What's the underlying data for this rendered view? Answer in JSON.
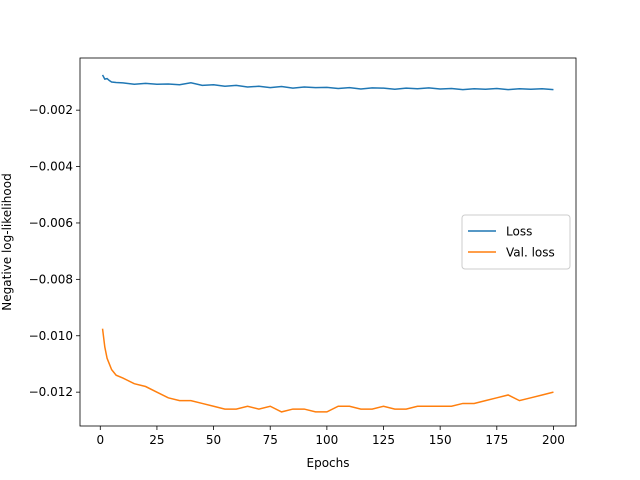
{
  "chart_data": {
    "type": "line",
    "xlabel": "Epochs",
    "ylabel": "Negative log-likelihood",
    "x": [
      1,
      2,
      3,
      4,
      5,
      7,
      10,
      15,
      20,
      25,
      30,
      35,
      40,
      45,
      50,
      55,
      60,
      65,
      70,
      75,
      80,
      85,
      90,
      95,
      100,
      105,
      110,
      115,
      120,
      125,
      130,
      135,
      140,
      145,
      150,
      155,
      160,
      165,
      170,
      175,
      180,
      185,
      190,
      195,
      200
    ],
    "series": [
      {
        "name": "Loss",
        "color": "#1f77b4",
        "values": [
          -0.00075,
          -0.0009,
          -0.00088,
          -0.00095,
          -0.001,
          -0.00102,
          -0.00103,
          -0.00108,
          -0.00105,
          -0.00108,
          -0.00107,
          -0.0011,
          -0.00103,
          -0.00112,
          -0.0011,
          -0.00115,
          -0.00112,
          -0.00118,
          -0.00115,
          -0.0012,
          -0.00116,
          -0.00122,
          -0.00118,
          -0.0012,
          -0.00119,
          -0.00123,
          -0.0012,
          -0.00125,
          -0.00121,
          -0.00122,
          -0.00126,
          -0.00122,
          -0.00124,
          -0.00121,
          -0.00125,
          -0.00123,
          -0.00127,
          -0.00124,
          -0.00126,
          -0.00123,
          -0.00127,
          -0.00124,
          -0.00126,
          -0.00124,
          -0.00127
        ]
      },
      {
        "name": "Val. loss",
        "color": "#ff7f0e",
        "values": [
          -0.00975,
          -0.0104,
          -0.0108,
          -0.011,
          -0.0112,
          -0.0114,
          -0.0115,
          -0.0117,
          -0.0118,
          -0.012,
          -0.0122,
          -0.0123,
          -0.0123,
          -0.0124,
          -0.0125,
          -0.0126,
          -0.0126,
          -0.0125,
          -0.0126,
          -0.0125,
          -0.0127,
          -0.0126,
          -0.0126,
          -0.0127,
          -0.0127,
          -0.0125,
          -0.0125,
          -0.0126,
          -0.0126,
          -0.0125,
          -0.0126,
          -0.0126,
          -0.0125,
          -0.0125,
          -0.0125,
          -0.0125,
          -0.0124,
          -0.0124,
          -0.0123,
          -0.0122,
          -0.0121,
          -0.0123,
          -0.0122,
          -0.0121,
          -0.012
        ]
      }
    ],
    "xlim": [
      -8.95,
      209.95
    ],
    "xticks": [
      0,
      25,
      50,
      75,
      100,
      125,
      150,
      175,
      200
    ],
    "ylim": [
      -0.0132,
      -0.00015
    ],
    "yticks": [
      {
        "value": -0.012,
        "label": "−0.012"
      },
      {
        "value": -0.01,
        "label": "−0.010"
      },
      {
        "value": -0.008,
        "label": "−0.008"
      },
      {
        "value": -0.006,
        "label": "−0.006"
      },
      {
        "value": -0.004,
        "label": "−0.004"
      },
      {
        "value": -0.002,
        "label": "−0.002"
      }
    ],
    "grid": false,
    "legend": "center right"
  }
}
